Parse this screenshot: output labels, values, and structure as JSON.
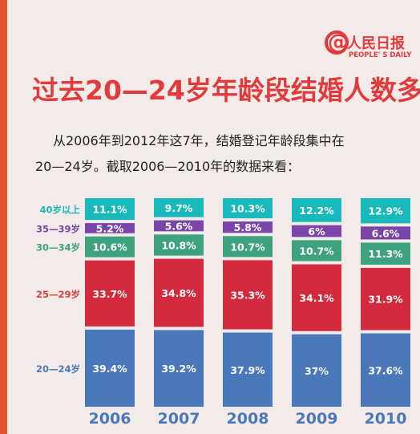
{
  "brand": {
    "at_symbol": "@",
    "name": "人民日报",
    "english": "PEOPLE' S DAILY"
  },
  "title": "过去20—24岁年龄段结婚人数多",
  "description": {
    "line1": "从2006年到2012年这7年，结婚登记年龄段集中在",
    "line2": "20—24岁。截取2006—2010年的数据来看："
  },
  "chart_data": {
    "type": "bar",
    "stacked": true,
    "percent_stacked": true,
    "categories": [
      "2006",
      "2007",
      "2008",
      "2009",
      "2010"
    ],
    "series": [
      {
        "name": "20—24岁",
        "color": "#4a78bb",
        "label_color": "#4a78bb",
        "values": [
          39.4,
          39.2,
          37.9,
          37,
          37.6
        ]
      },
      {
        "name": "25—29岁",
        "color": "#d32a3d",
        "label_color": "#e23b3b",
        "values": [
          33.7,
          34.8,
          35.3,
          34.1,
          31.9
        ]
      },
      {
        "name": "30—34岁",
        "color": "#3fa27e",
        "label_color": "#3fa27e",
        "values": [
          10.6,
          10.8,
          10.7,
          10.7,
          11.3
        ]
      },
      {
        "name": "35—39岁",
        "color": "#7a45a8",
        "label_color": "#7a45a8",
        "values": [
          5.2,
          5.6,
          5.8,
          6,
          6.6
        ]
      },
      {
        "name": "40岁以上",
        "color": "#19b9bb",
        "label_color": "#19b9bb",
        "values": [
          11.1,
          9.7,
          10.3,
          12.2,
          12.9
        ]
      }
    ],
    "value_labels": [
      [
        "39.4%",
        "39.2%",
        "37.9%",
        "37%",
        "37.6%"
      ],
      [
        "33.7%",
        "34.8%",
        "35.3%",
        "34.1%",
        "31.9%"
      ],
      [
        "10.6%",
        "10.8%",
        "10.7%",
        "10.7%",
        "11.3%"
      ],
      [
        "5.2%",
        "5.6%",
        "5.8%",
        "6%",
        "6.6%"
      ],
      [
        "11.1%",
        "9.7%",
        "10.3%",
        "12.2%",
        "12.9%"
      ]
    ],
    "legend_placement": "left",
    "category_label_color": "#4a78bb",
    "grid": false
  }
}
